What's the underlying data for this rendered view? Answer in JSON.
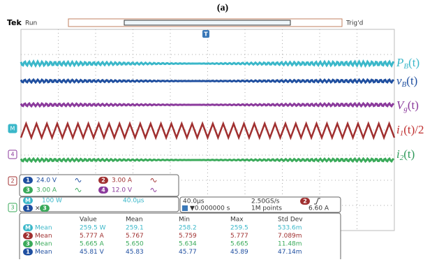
{
  "header": {
    "title": "(a)",
    "brand": "Tek",
    "status": "Run",
    "trigger_status": "Trig'd"
  },
  "trace_labels": [
    {
      "main": "P",
      "sub": "B",
      "tail": "(t)"
    },
    {
      "main": "v",
      "sub": "B",
      "tail": "(t)"
    },
    {
      "main": "V",
      "sub": "g",
      "tail": "(t)"
    },
    {
      "main": "i",
      "sub": "1",
      "tail": "(t)/2"
    },
    {
      "main": "i",
      "sub": "2",
      "tail": "(t)"
    }
  ],
  "markers": [
    "M",
    "4",
    "2",
    "3"
  ],
  "trigger_marker": "T",
  "channels": [
    {
      "ch": "1",
      "scale": "24.0 V"
    },
    {
      "ch": "2",
      "scale": "3.00 A"
    },
    {
      "ch": "3",
      "scale": "3.00 A"
    },
    {
      "ch": "4",
      "scale": "12.0 V"
    }
  ],
  "math": {
    "ch": "M",
    "scale": "100 W",
    "time": "40.0µs",
    "a": "1",
    "op": "×",
    "b": "3"
  },
  "timebase": {
    "time": "40.0µs",
    "rate": "2.50GS/s",
    "trig_ch": "2",
    "trig_level": "6.60 A",
    "position": "▼0.000000 s",
    "points": "1M points"
  },
  "measurements": {
    "columns": [
      "Value",
      "Mean",
      "Min",
      "Max",
      "Std Dev"
    ],
    "rows": [
      {
        "ch": "M",
        "stat": "Mean",
        "cells": [
          "259.5 W",
          "259.1",
          "258.2",
          "259.5",
          "533.6m"
        ]
      },
      {
        "ch": "2",
        "stat": "Mean",
        "cells": [
          "5.777 A",
          "5.767",
          "5.759",
          "5.777",
          "7.089m"
        ]
      },
      {
        "ch": "3",
        "stat": "Mean",
        "cells": [
          "5.665 A",
          "5.650",
          "5.634",
          "5.665",
          "11.48m"
        ]
      },
      {
        "ch": "1",
        "stat": "Mean",
        "cells": [
          "45.81 V",
          "45.83",
          "45.77",
          "45.89",
          "47.14m"
        ]
      }
    ]
  }
}
